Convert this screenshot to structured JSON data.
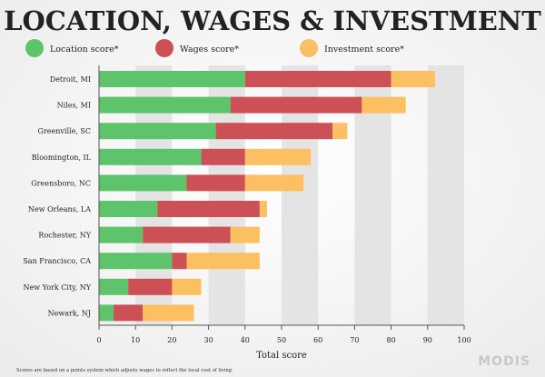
{
  "chart_data": {
    "type": "bar",
    "orientation": "horizontal",
    "stacked": true,
    "title": "LOCATION, WAGES & INVESTMENT",
    "xlabel": "Total score",
    "ylabel": "",
    "xlim": [
      0,
      100
    ],
    "xticks": [
      0,
      10,
      20,
      30,
      40,
      50,
      60,
      70,
      80,
      90,
      100
    ],
    "grid": "alternating vertical bands",
    "legend": "top",
    "categories": [
      "Detroit, MI",
      "Niles, MI",
      "Greenville, SC",
      "Bloomington, IL",
      "Greensboro, NC",
      "New Orleans, LA",
      "Rochester, NY",
      "San Francisco, CA",
      "New York City, NY",
      "Newark, NJ"
    ],
    "series": [
      {
        "name": "Location score*",
        "color": "#5ec46c",
        "values": [
          40,
          36,
          32,
          28,
          24,
          16,
          12,
          20,
          8,
          4
        ]
      },
      {
        "name": "Wages score*",
        "color": "#cc5055",
        "values": [
          40,
          36,
          32,
          12,
          16,
          28,
          24,
          4,
          12,
          8
        ]
      },
      {
        "name": "Investment score*",
        "color": "#fcbf62",
        "values": [
          12,
          12,
          4,
          18,
          16,
          2,
          8,
          20,
          8,
          14
        ]
      }
    ],
    "footnote": "Scores are based on a points system which adjusts wages to reflect the local cost of living.",
    "logo": "MODIS"
  }
}
